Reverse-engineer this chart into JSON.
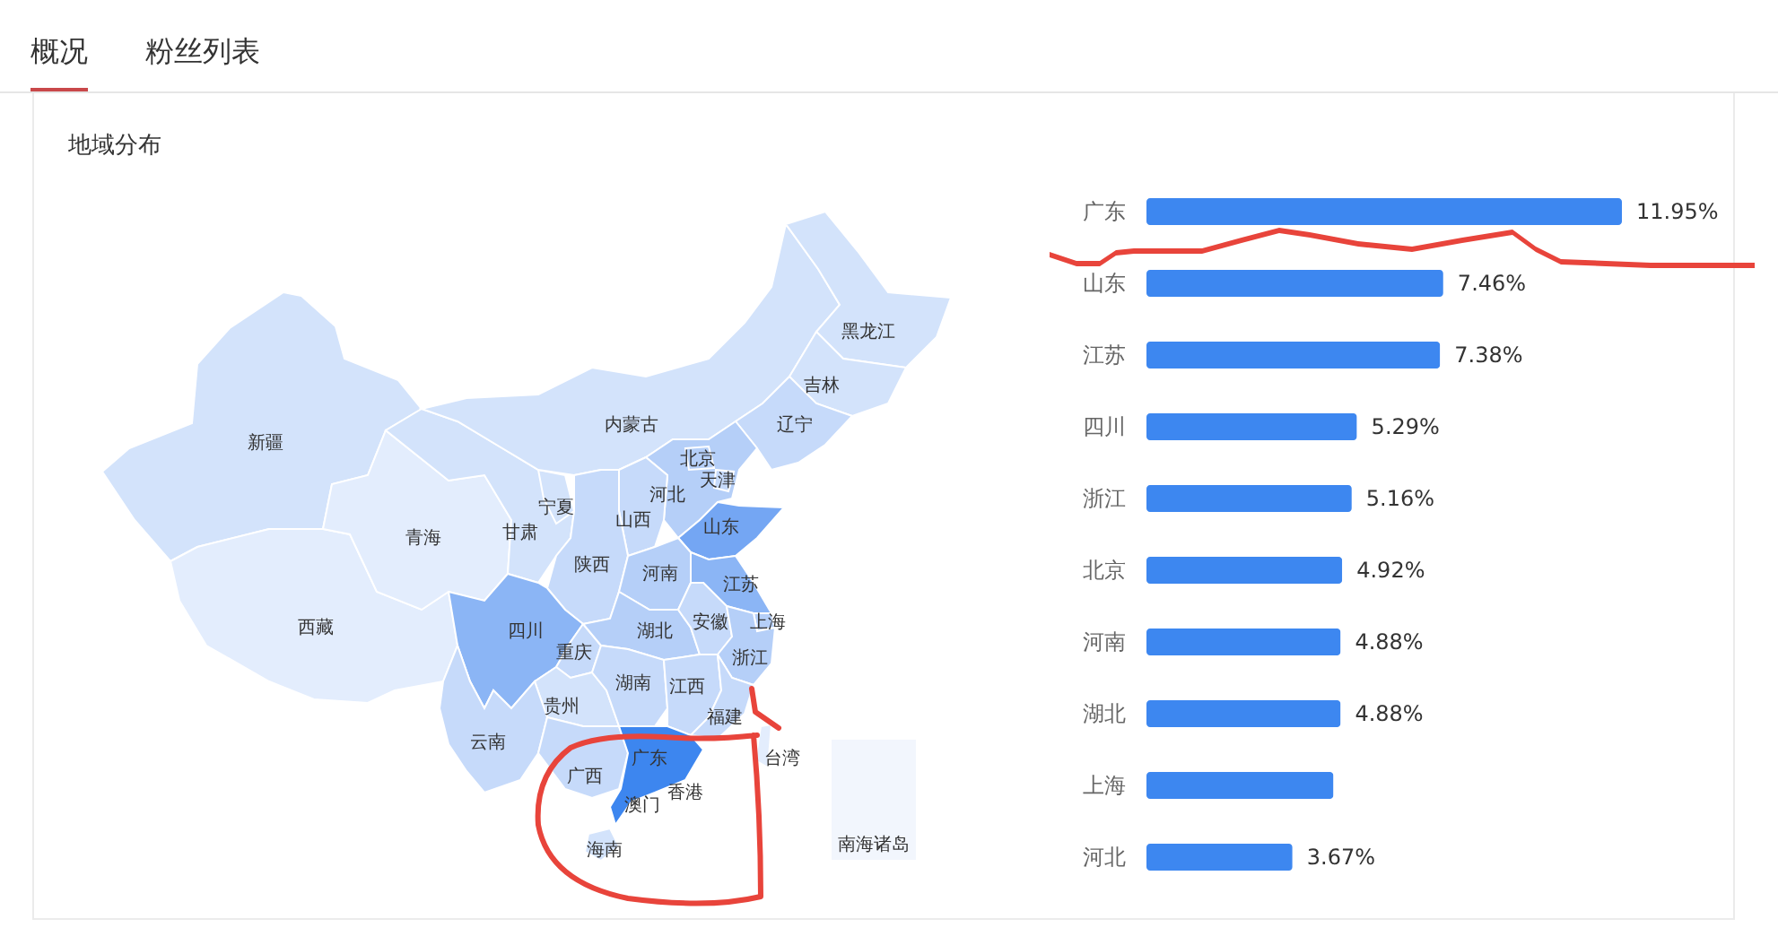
{
  "chart_data": [
    {
      "type": "other",
      "title": "地域分布",
      "annotations": [
        "概况",
        "粉丝列表"
      ],
      "categories": [
        "新疆",
        "西藏",
        "青海",
        "甘肃",
        "宁夏",
        "内蒙古",
        "黑龙江",
        "吉林",
        "辽宁",
        "河北",
        "北京",
        "天津",
        "山西",
        "山东",
        "陕西",
        "河南",
        "江苏",
        "四川",
        "重庆",
        "湖北",
        "安徽",
        "上海",
        "浙江",
        "贵州",
        "湖南",
        "江西",
        "福建",
        "云南",
        "广西",
        "广东",
        "台湾",
        "香港",
        "澳门",
        "海南",
        "南海诸岛"
      ],
      "colors": [
        "#d3e3fb",
        "#e3edfd",
        "#e3edfd",
        "#d3e3fb",
        "#d3e3fb",
        "#d3e3fb",
        "#d3e3fb",
        "#d3e3fb",
        "#c6dafa",
        "#b5cff8",
        "#b5cff8",
        "#c6dafa",
        "#c6dafa",
        "#74a6f3",
        "#c6dafa",
        "#b5cff8",
        "#8bb5f5",
        "#8bb5f5",
        "#c6dafa",
        "#b5cff8",
        "#c6dafa",
        "#b5cff8",
        "#b5cff8",
        "#d3e3fb",
        "#c6dafa",
        "#c6dafa",
        "#c6dafa",
        "#c6dafa",
        "#c6dafa",
        "#3d86ef",
        "#e3edfd",
        null,
        null,
        "#d3e3fb",
        "#f2f6fd"
      ]
    },
    {
      "type": "bar",
      "orientation": "horizontal",
      "categories": [
        "广东",
        "山东",
        "江苏",
        "四川",
        "浙江",
        "北京",
        "河南",
        "湖北",
        "上海",
        "河北"
      ],
      "values": [
        11.95,
        7.46,
        7.38,
        5.29,
        5.16,
        4.92,
        4.88,
        4.88,
        4.7,
        3.67
      ],
      "value_labels": [
        "11.95%",
        "7.46%",
        "7.38%",
        "5.29%",
        "5.16%",
        "4.92%",
        "4.88%",
        "4.88%",
        null,
        "3.67%"
      ],
      "color": "#3d87f0"
    }
  ]
}
